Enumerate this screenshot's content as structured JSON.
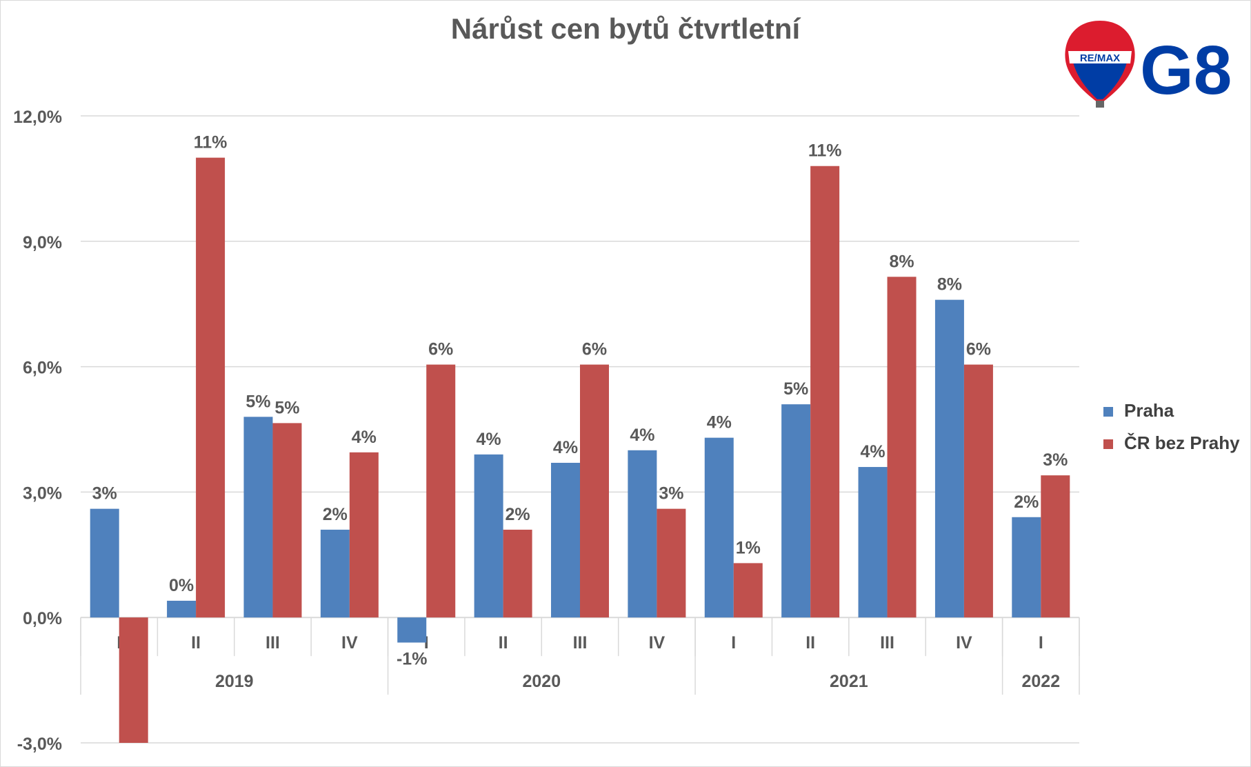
{
  "title": "Nárůst cen bytů čtvrtletní",
  "logo": {
    "brand": "RE/MAX",
    "office": "G8"
  },
  "colors": {
    "praha": "#4f81bd",
    "cr": "#c0504d",
    "grid": "#d9d9d9",
    "text": "#595959"
  },
  "chart_data": {
    "type": "bar",
    "title": "Nárůst cen bytů čtvrtletní",
    "xlabel": "",
    "ylabel": "",
    "ylim": [
      -3.0,
      12.0
    ],
    "yticks": [
      "-3,0%",
      "0,0%",
      "3,0%",
      "6,0%",
      "9,0%",
      "12,0%"
    ],
    "ytick_values": [
      -3,
      0,
      3,
      6,
      9,
      12
    ],
    "grid": true,
    "legend_position": "right",
    "categories": [
      "I",
      "II",
      "III",
      "IV",
      "I",
      "II",
      "III",
      "IV",
      "I",
      "II",
      "III",
      "IV",
      "I"
    ],
    "groups": [
      {
        "label": "2019",
        "count": 4
      },
      {
        "label": "2020",
        "count": 4
      },
      {
        "label": "2021",
        "count": 4
      },
      {
        "label": "2022",
        "count": 1
      }
    ],
    "series": [
      {
        "name": "Praha",
        "values": [
          2.6,
          0.4,
          4.8,
          2.1,
          -0.6,
          3.9,
          3.7,
          4.0,
          4.3,
          5.1,
          3.6,
          7.6,
          2.4
        ],
        "labels": [
          "3%",
          "0%",
          "5%",
          "2%",
          "-1%",
          "4%",
          "4%",
          "4%",
          "4%",
          "5%",
          "4%",
          "8%",
          "2%"
        ]
      },
      {
        "name": "ČR bez Prahy",
        "values": [
          -3.0,
          11.0,
          4.65,
          3.95,
          6.05,
          2.1,
          6.05,
          2.6,
          1.3,
          10.8,
          8.15,
          6.05,
          3.4
        ],
        "labels": [
          "",
          "11%",
          "5%",
          "4%",
          "6%",
          "2%",
          "6%",
          "3%",
          "1%",
          "11%",
          "8%",
          "6%",
          "3%"
        ]
      }
    ]
  }
}
